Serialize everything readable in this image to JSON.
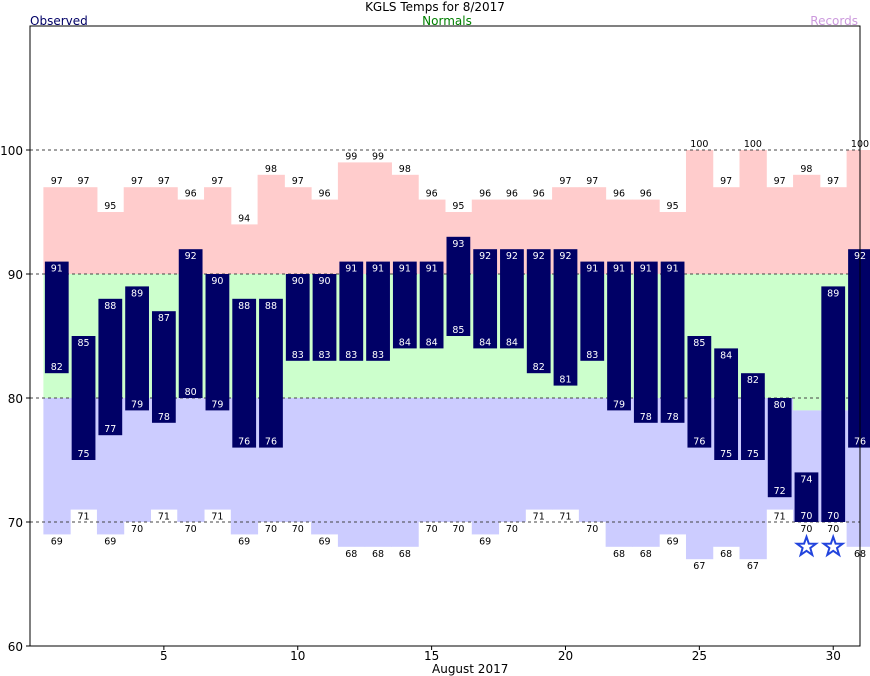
{
  "chart_data": {
    "type": "bar",
    "title": "KGLS Temps for 8/2017",
    "xlabel": "August 2017",
    "ylabel": "",
    "legend": [
      {
        "name": "Observed",
        "color": "#000066",
        "position": "top-left"
      },
      {
        "name": "Normals",
        "color": "#008000",
        "position": "top-center"
      },
      {
        "name": "Records",
        "color": "#cc99dd",
        "position": "top-right"
      }
    ],
    "ylim": [
      60,
      110
    ],
    "xlim": [
      0.5,
      31.5
    ],
    "yticks": [
      60,
      70,
      80,
      90,
      100
    ],
    "xticks": [
      5,
      10,
      15,
      20,
      25,
      30
    ],
    "grid": "dashed at 70, 80, 90, 100",
    "days": [
      1,
      2,
      3,
      4,
      5,
      6,
      7,
      8,
      9,
      10,
      11,
      12,
      13,
      14,
      15,
      16,
      17,
      18,
      19,
      20,
      21,
      22,
      23,
      24,
      25,
      26,
      27,
      28,
      29,
      30,
      31
    ],
    "series": [
      {
        "name": "Observed high",
        "values": [
          91,
          85,
          88,
          89,
          87,
          92,
          90,
          88,
          88,
          90,
          90,
          91,
          91,
          91,
          91,
          93,
          92,
          92,
          92,
          92,
          91,
          91,
          91,
          91,
          85,
          84,
          82,
          80,
          74,
          89,
          92
        ]
      },
      {
        "name": "Observed low",
        "values": [
          82,
          75,
          77,
          79,
          78,
          80,
          79,
          76,
          76,
          83,
          83,
          83,
          83,
          84,
          84,
          85,
          84,
          84,
          82,
          81,
          83,
          79,
          78,
          78,
          76,
          75,
          75,
          72,
          70,
          70,
          76
        ]
      },
      {
        "name": "Normal high",
        "values": [
          90,
          90,
          90,
          90,
          90,
          90,
          90,
          90,
          90,
          90,
          90,
          90,
          90,
          90,
          90,
          90,
          90,
          90,
          90,
          90,
          90,
          90,
          90,
          90,
          90,
          90,
          90,
          90,
          90,
          90,
          90
        ]
      },
      {
        "name": "Normal low",
        "values": [
          80,
          80,
          80,
          80,
          80,
          80,
          80,
          80,
          80,
          80,
          80,
          80,
          80,
          80,
          80,
          80,
          80,
          80,
          80,
          80,
          80,
          80,
          80,
          80,
          80,
          80,
          80,
          80,
          79,
          79,
          79
        ]
      },
      {
        "name": "Record high",
        "values": [
          97,
          97,
          95,
          97,
          97,
          96,
          97,
          94,
          98,
          97,
          96,
          99,
          99,
          98,
          96,
          95,
          96,
          96,
          96,
          97,
          97,
          96,
          96,
          95,
          100,
          97,
          100,
          97,
          98,
          97,
          100
        ]
      },
      {
        "name": "Record low",
        "values": [
          69,
          71,
          69,
          70,
          71,
          70,
          71,
          69,
          70,
          70,
          69,
          68,
          68,
          68,
          70,
          70,
          69,
          70,
          71,
          71,
          70,
          68,
          68,
          69,
          67,
          68,
          67,
          71,
          70,
          70,
          68
        ]
      }
    ],
    "record_markers": [
      29,
      30
    ],
    "colors": {
      "observed": "#000066",
      "normal": "#ccffcc",
      "record_high": "#ffcccc",
      "record_low": "#ccccff",
      "marker": "#2244dd"
    }
  }
}
